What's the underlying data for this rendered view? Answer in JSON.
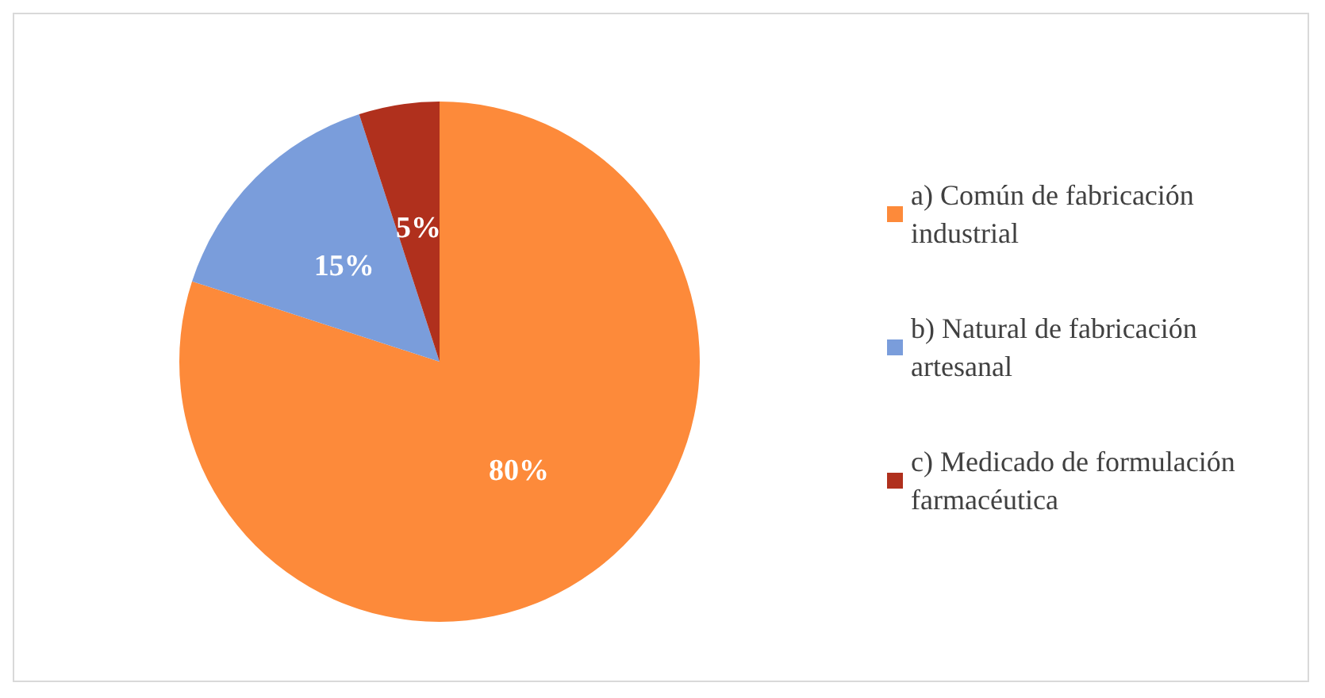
{
  "chart_data": {
    "type": "pie",
    "categories": [
      "a) Común de fabricación industrial",
      "b) Natural de fabricación artesanal",
      "c) Medicado de formulación farmacéutica"
    ],
    "values": [
      80,
      15,
      5
    ],
    "value_labels": [
      "80%",
      "15%",
      "5%"
    ],
    "colors": [
      "#fd8a3a",
      "#7a9ddb",
      "#b0301d"
    ],
    "legend": "right"
  }
}
